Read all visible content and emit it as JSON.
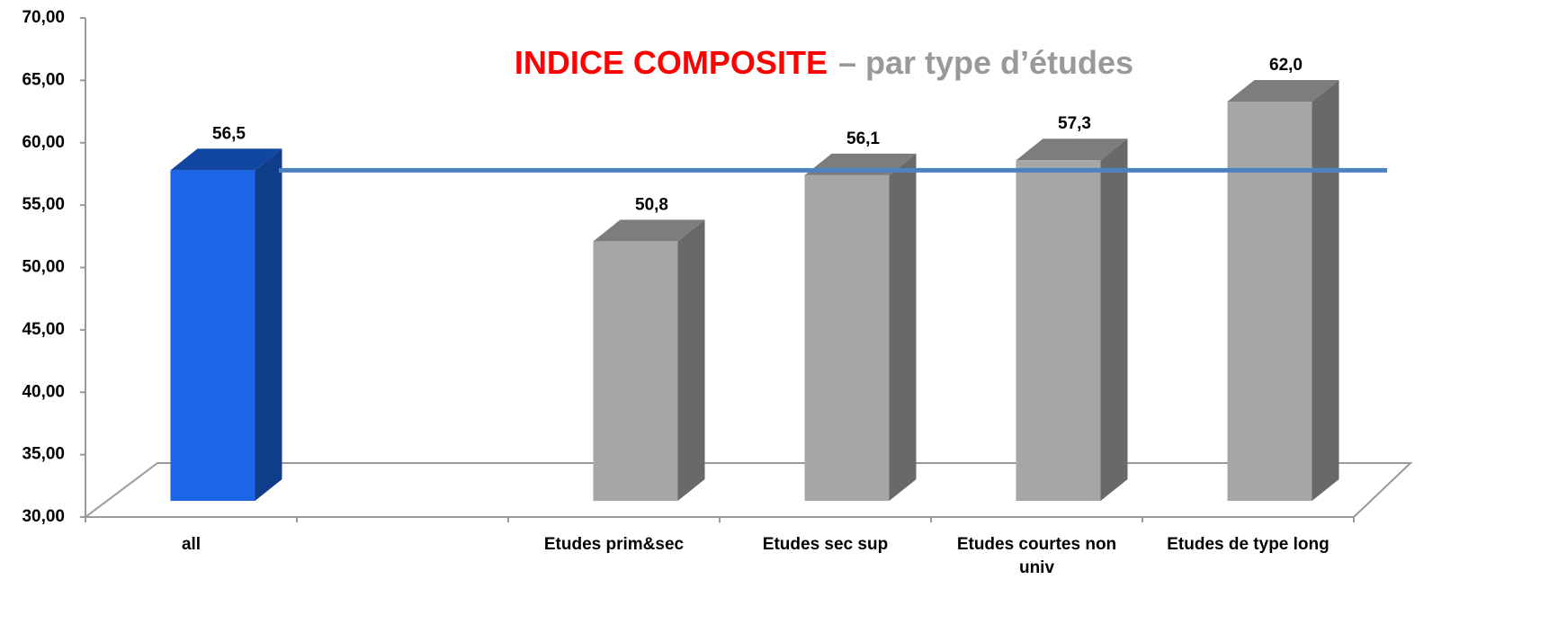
{
  "chart_data": {
    "type": "bar3d",
    "title": "INDICE COMPOSITE",
    "subtitle": "– par type d’études",
    "categories": [
      "all",
      null,
      "Etudes prim&sec",
      "Etudes sec sup",
      "Etudes courtes non univ",
      "Etudes de type long"
    ],
    "values": [
      56.5,
      null,
      50.8,
      56.1,
      57.3,
      62.0
    ],
    "value_labels": [
      "56,5",
      null,
      "50,8",
      "56,1",
      "57,3",
      "62,0"
    ],
    "colors": [
      "#1a66e6",
      null,
      "#a6a6a6",
      "#a6a6a6",
      "#a6a6a6",
      "#a6a6a6"
    ],
    "reference_line": {
      "value": 56.5,
      "color": "#4f81bd"
    },
    "ylim": [
      30,
      70
    ],
    "yticks": [
      {
        "value": 30,
        "label": "30,00"
      },
      {
        "value": 35,
        "label": "35,00"
      },
      {
        "value": 40,
        "label": "40,00"
      },
      {
        "value": 45,
        "label": "45,00"
      },
      {
        "value": 50,
        "label": "50,00"
      },
      {
        "value": 55,
        "label": "55,00"
      },
      {
        "value": 60,
        "label": "60,00"
      },
      {
        "value": 65,
        "label": "65,00"
      },
      {
        "value": 70,
        "label": "70,00"
      }
    ],
    "title_color": "#ff0000",
    "subtitle_color": "#999999"
  }
}
